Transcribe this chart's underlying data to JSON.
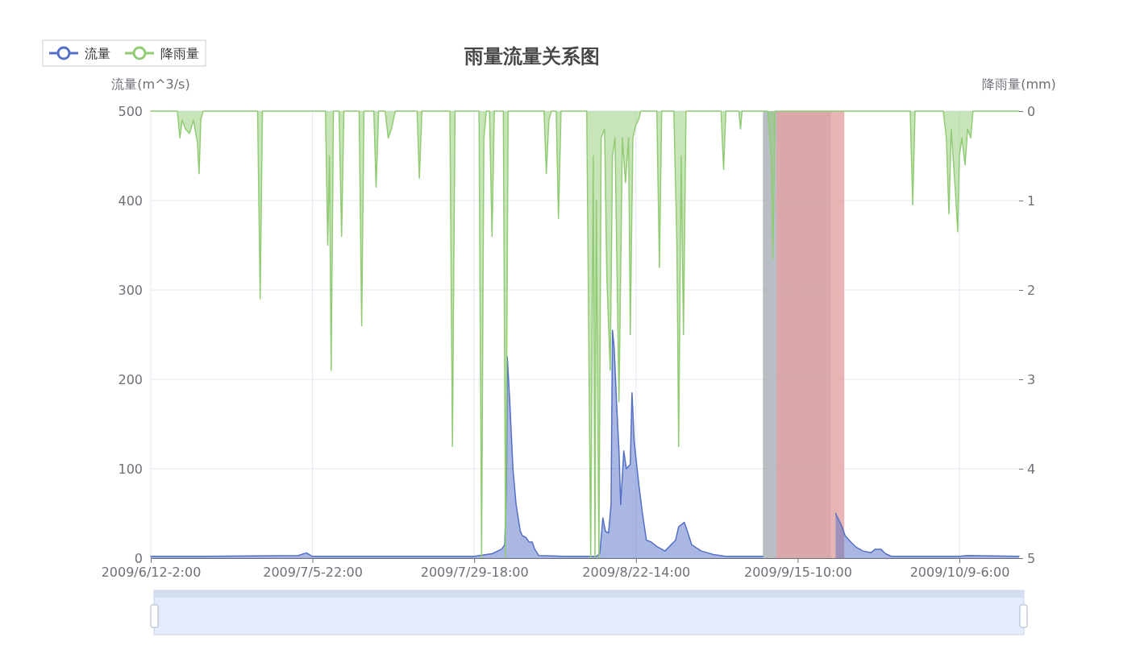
{
  "chart_data": {
    "type": "area",
    "title": "雨量流量关系图",
    "ylabel": "流量(m^3/s)",
    "y2label": "降雨量(mm)",
    "xlim": [
      "2009-06-12T02:00",
      "2009-10-18T01:00"
    ],
    "xticks": [
      {
        "value": "2009-06-12T02:00",
        "label": "2009/6/12-2:00"
      },
      {
        "value": "2009-07-05T22:00",
        "label": "2009/7/5-22:00"
      },
      {
        "value": "2009-07-29T18:00",
        "label": "2009/7/29-18:00"
      },
      {
        "value": "2009-08-22T14:00",
        "label": "2009/8/22-14:00"
      },
      {
        "value": "2009-09-15T10:00",
        "label": "2009/9/15-10:00"
      },
      {
        "value": "2009-10-09T06:00",
        "label": "2009/10/9-6:00"
      }
    ],
    "ylim": [
      0,
      500
    ],
    "yticks": [
      0,
      100,
      200,
      300,
      400,
      500
    ],
    "y2lim": [
      5,
      0
    ],
    "y2ticks": [
      0,
      1,
      2,
      3,
      4,
      5
    ],
    "grid": true,
    "legend": "top left",
    "bands": [
      {
        "axis": "x",
        "from": "2009-09-10T07:00",
        "to": "2009-09-20T07:00",
        "color": "#a7aeb6"
      },
      {
        "axis": "x",
        "from": "2009-09-12T07:00",
        "to": "2009-09-22T07:00",
        "color": "#e2a3a3"
      }
    ],
    "series": [
      {
        "name": "流量",
        "color": "#5470c6",
        "x": [
          "2009-06-12T02:00",
          "2009-06-19T14:00",
          "2009-07-03T20:00",
          "2009-07-05T00:00",
          "2009-07-05T22:00",
          "2009-07-26T10:00",
          "2009-07-29T18:00",
          "2009-08-01T09:00",
          "2009-08-02T19:00",
          "2009-08-03T06:00",
          "2009-08-03T12:00",
          "2009-08-03T15:00",
          "2009-08-03T23:00",
          "2009-08-04T11:00",
          "2009-08-04T22:00",
          "2009-08-05T13:00",
          "2009-08-05T21:00",
          "2009-08-06T09:00",
          "2009-08-06T20:00",
          "2009-08-07T07:00",
          "2009-08-07T16:00",
          "2009-08-08T06:00",
          "2009-08-12T01:00",
          "2009-08-16T18:00",
          "2009-08-17T06:00",
          "2009-08-17T17:00",
          "2009-08-18T02:00",
          "2009-08-18T13:00",
          "2009-08-18T22:00",
          "2009-08-19T03:00",
          "2009-08-19T09:00",
          "2009-08-19T18:00",
          "2009-08-20T02:00",
          "2009-08-20T08:00",
          "2009-08-20T19:00",
          "2009-08-21T04:00",
          "2009-08-21T18:00",
          "2009-08-22T00:00",
          "2009-08-22T08:00",
          "2009-08-22T14:00",
          "2009-08-23T01:00",
          "2009-08-23T13:00",
          "2009-08-24T03:00",
          "2009-08-24T20:00",
          "2009-08-25T16:00",
          "2009-08-26T21:00",
          "2009-08-28T10:00",
          "2009-08-28T21:00",
          "2009-08-29T17:00",
          "2009-08-30T04:00",
          "2009-08-30T19:00",
          "2009-09-01T05:00",
          "2009-09-03T00:00",
          "2009-09-04T19:00",
          "2009-09-09T14:00",
          "2009-09-10T07:00",
          "2009-09-10T13:00",
          "2009-09-21T00:00",
          "2009-09-21T23:00",
          "2009-09-22T10:00",
          "2009-09-23T06:00",
          "2009-09-24T02:00",
          "2009-09-25T01:00",
          "2009-09-26T05:00",
          "2009-09-26T20:00",
          "2009-09-27T16:00",
          "2009-09-28T09:00",
          "2009-09-29T05:00",
          "2009-10-09T06:00",
          "2009-10-10T11:00",
          "2009-10-18T01:00"
        ],
        "values": [
          2,
          2,
          3,
          6,
          2,
          2,
          2,
          5,
          10,
          15,
          80,
          225,
          180,
          100,
          60,
          30,
          25,
          23,
          18,
          18,
          10,
          3,
          2,
          2,
          5,
          45,
          30,
          28,
          60,
          255,
          235,
          170,
          120,
          60,
          120,
          100,
          105,
          185,
          130,
          112,
          80,
          50,
          20,
          18,
          13,
          8,
          20,
          35,
          40,
          30,
          15,
          8,
          4,
          2,
          2,
          2,
          null,
          50,
          35,
          25,
          18,
          12,
          8,
          6,
          10,
          10,
          5,
          2,
          2,
          3,
          2
        ]
      },
      {
        "name": "降雨量",
        "color": "#91cc75",
        "axis": "y2",
        "x": [
          "2009-06-12T02:00",
          "2009-06-16T00:00",
          "2009-06-16T09:00",
          "2009-06-16T17:00",
          "2009-06-17T05:00",
          "2009-06-17T19:00",
          "2009-06-18T09:00",
          "2009-06-18T23:00",
          "2009-06-19T05:00",
          "2009-06-19T11:00",
          "2009-06-19T19:00",
          "2009-06-27T20:00",
          "2009-06-28T05:00",
          "2009-06-28T13:00",
          "2009-07-05T22:00",
          "2009-07-07T20:00",
          "2009-07-08T04:00",
          "2009-07-08T10:00",
          "2009-07-08T16:00",
          "2009-07-09T00:00",
          "2009-07-09T20:00",
          "2009-07-10T05:00",
          "2009-07-10T13:00",
          "2009-07-12T19:00",
          "2009-07-13T04:00",
          "2009-07-13T12:00",
          "2009-07-14T23:00",
          "2009-07-15T07:00",
          "2009-07-15T16:00",
          "2009-07-16T15:00",
          "2009-07-17T02:00",
          "2009-07-17T13:00",
          "2009-07-18T03:00",
          "2009-07-21T08:00",
          "2009-07-21T16:00",
          "2009-07-22T01:00",
          "2009-07-26T04:00",
          "2009-07-26T13:00",
          "2009-07-26T22:00",
          "2009-07-29T18:00",
          "2009-07-30T11:00",
          "2009-07-30T20:00",
          "2009-07-31T04:00",
          "2009-07-31T13:00",
          "2009-08-01T00:00",
          "2009-08-01T09:00",
          "2009-08-01T17:00",
          "2009-08-03T01:00",
          "2009-08-03T09:00",
          "2009-08-03T18:00",
          "2009-08-09T01:00",
          "2009-08-09T09:00",
          "2009-08-09T18:00",
          "2009-08-10T03:00",
          "2009-08-10T20:00",
          "2009-08-11T04:00",
          "2009-08-11T13:00",
          "2009-08-15T08:00",
          "2009-08-15T22:00",
          "2009-08-16T07:00",
          "2009-08-16T13:00",
          "2009-08-16T18:00",
          "2009-08-17T03:00",
          "2009-08-17T11:00",
          "2009-08-17T23:00",
          "2009-08-18T07:00",
          "2009-08-18T19:00",
          "2009-08-19T03:00",
          "2009-08-19T12:00",
          "2009-08-20T02:00",
          "2009-08-20T14:00",
          "2009-08-21T01:00",
          "2009-08-21T12:00",
          "2009-08-21T18:00",
          "2009-08-22T03:00",
          "2009-08-22T14:00",
          "2009-08-22T23:00",
          "2009-08-23T07:00",
          "2009-08-25T16:00",
          "2009-08-26T01:00",
          "2009-08-26T09:00",
          "2009-08-28T04:00",
          "2009-08-28T15:00",
          "2009-08-28T21:00",
          "2009-08-29T06:00",
          "2009-08-29T14:00",
          "2009-08-29T23:00",
          "2009-09-04T03:00",
          "2009-09-04T12:00",
          "2009-09-04T20:00",
          "2009-09-06T18:00",
          "2009-09-07T00:00",
          "2009-09-07T05:00",
          "2009-09-11T00:00",
          "2009-09-11T12:00",
          "2009-09-11T18:00",
          "2009-09-12T02:00",
          "2009-09-15T10:00",
          "2009-10-02T00:00",
          "2009-10-02T09:00",
          "2009-10-02T17:00",
          "2009-10-06T21:00",
          "2009-10-07T08:00",
          "2009-10-07T17:00",
          "2009-10-08T01:00",
          "2009-10-08T16:00",
          "2009-10-09T00:00",
          "2009-10-09T06:00",
          "2009-10-09T15:00",
          "2009-10-10T02:00",
          "2009-10-10T11:00",
          "2009-10-10T22:00",
          "2009-10-11T06:00",
          "2009-10-18T01:00"
        ],
        "values": [
          0,
          0,
          0.3,
          0.1,
          0.2,
          0.25,
          0.1,
          0.35,
          0.7,
          0.1,
          0,
          0,
          2.1,
          0,
          0,
          0,
          1.5,
          0.5,
          2.9,
          0,
          0,
          1.4,
          0,
          0,
          2.4,
          0,
          0,
          0.85,
          0,
          0,
          0.3,
          0.2,
          0,
          0,
          0.75,
          0,
          0,
          3.75,
          0,
          0,
          0,
          5,
          0.3,
          0,
          0,
          1.4,
          0,
          0,
          5,
          0,
          0,
          0.7,
          0.1,
          0,
          0,
          1.2,
          0,
          0,
          5,
          0.5,
          5,
          1,
          5,
          0.3,
          0.2,
          1.85,
          2.9,
          0.5,
          0.3,
          3.25,
          0.3,
          0.8,
          0.3,
          2.5,
          0.3,
          0.15,
          0.1,
          0,
          0,
          1.75,
          0,
          0,
          1.5,
          3.75,
          0.5,
          2.5,
          0,
          0,
          0.65,
          0,
          0,
          0.2,
          0,
          0,
          0.5,
          1.65,
          0,
          0,
          0,
          1.05,
          0,
          0,
          0.3,
          1.15,
          0.2,
          0.9,
          1.35,
          0.5,
          0.3,
          0.6,
          0.2,
          0.3,
          0,
          0
        ]
      }
    ]
  }
}
